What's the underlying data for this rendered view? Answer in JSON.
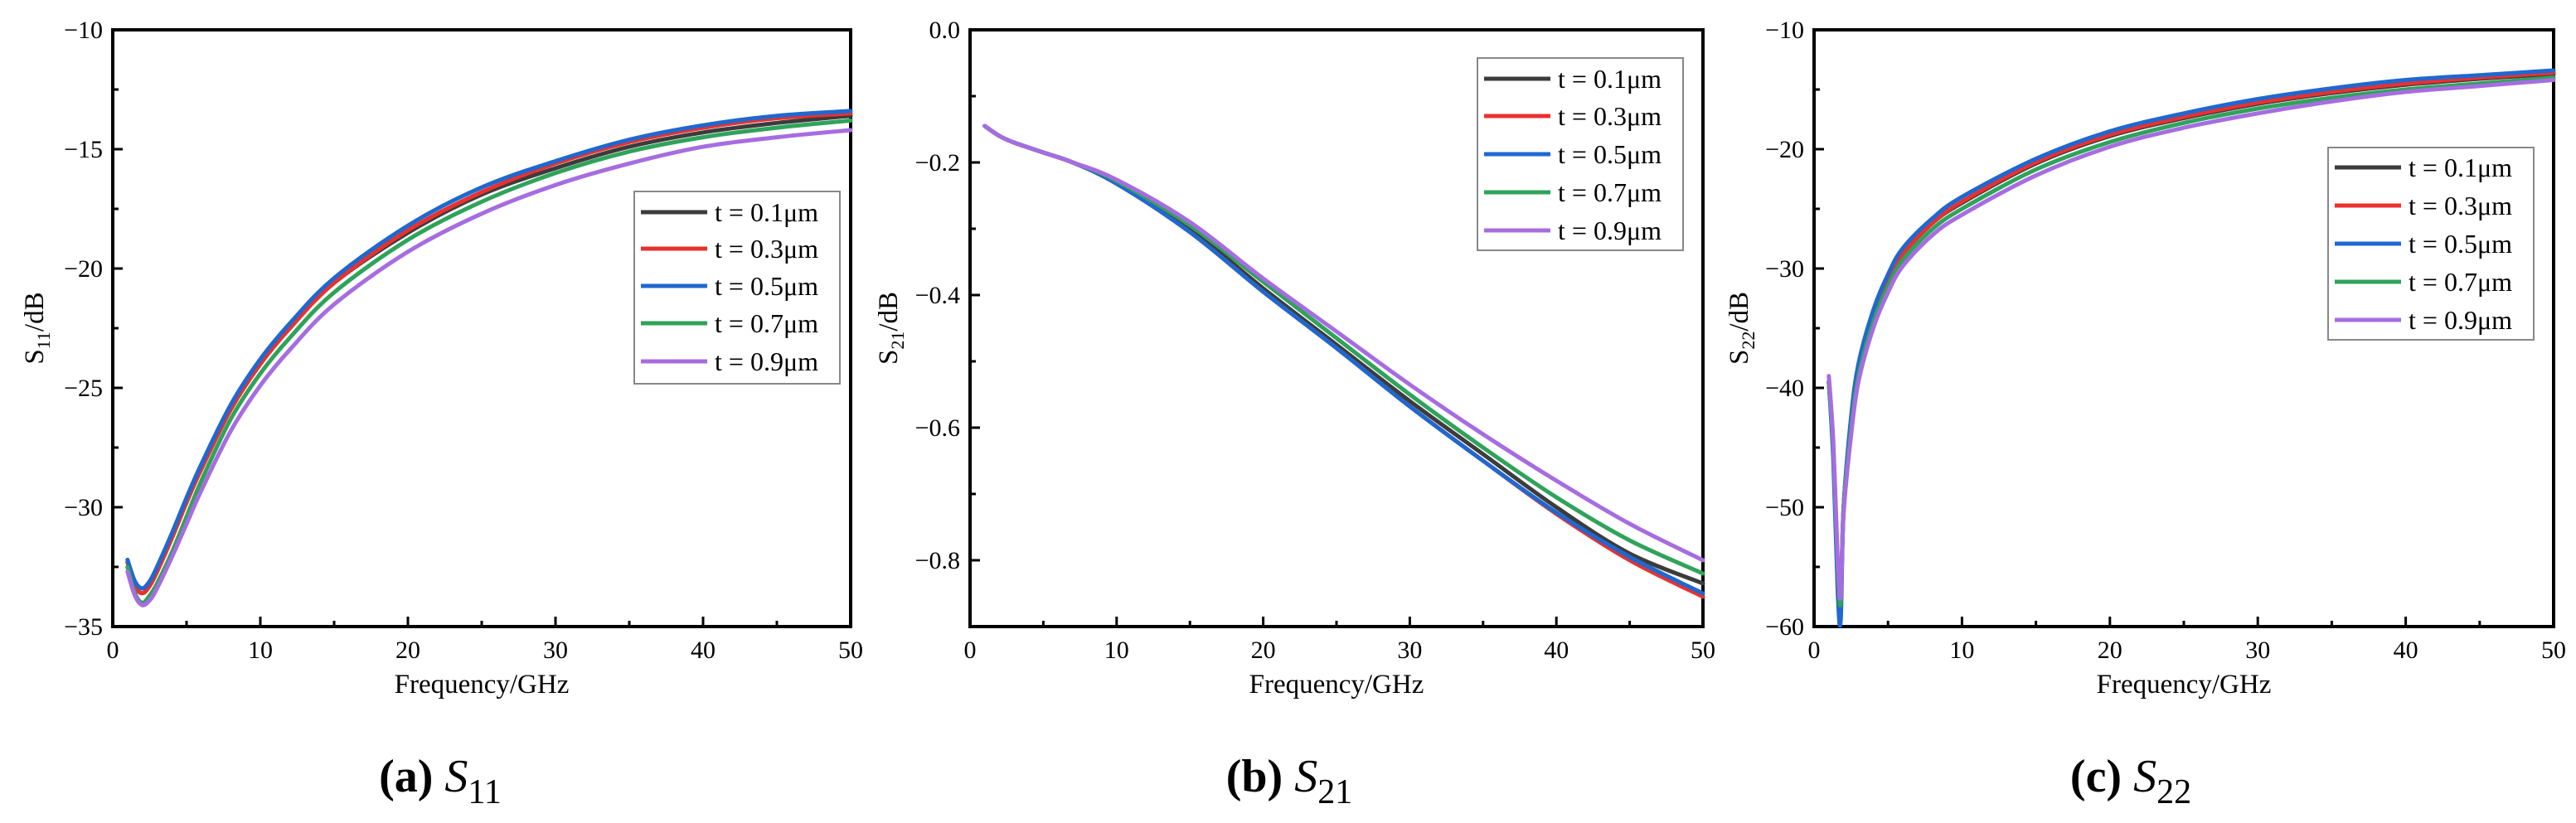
{
  "legend_labels": [
    "t = 0.1μm",
    "t = 0.3μm",
    "t = 0.5μm",
    "t = 0.7μm",
    "t = 0.9μm"
  ],
  "series_colors": [
    "#3c3c3c",
    "#e8312f",
    "#1f68d0",
    "#2fa35a",
    "#a66de0"
  ],
  "chart_data": [
    {
      "type": "line",
      "caption": {
        "letter": "(a)",
        "symbol": "S",
        "sub": "11"
      },
      "xlabel": "Frequency/GHz",
      "ylabel": {
        "main": "S",
        "sub": "11",
        "unit": "/dB"
      },
      "xlim": [
        0,
        50
      ],
      "ylim": [
        -35,
        -10
      ],
      "xticks": [
        0,
        10,
        20,
        30,
        40,
        50
      ],
      "yticks": [
        -35,
        -30,
        -25,
        -20,
        -15,
        -10
      ],
      "tick_labels_x": [
        "0",
        "10",
        "20",
        "30",
        "40",
        "50"
      ],
      "tick_labels_y": [
        "−35",
        "−30",
        "−25",
        "−20",
        "−15",
        "−10"
      ],
      "legend_position": "right-middle",
      "x": [
        1,
        1.5,
        2,
        2.5,
        3,
        4,
        5,
        6,
        8,
        10,
        12,
        15,
        20,
        25,
        30,
        35,
        40,
        45,
        50
      ],
      "series": [
        {
          "name": "t = 0.1μm",
          "values": [
            -32.3,
            -33.3,
            -33.6,
            -33.3,
            -32.7,
            -31.3,
            -29.8,
            -28.4,
            -25.9,
            -24.0,
            -22.5,
            -20.6,
            -18.5,
            -16.9,
            -15.8,
            -14.9,
            -14.3,
            -13.9,
            -13.6
          ]
        },
        {
          "name": "t = 0.3μm",
          "values": [
            -32.3,
            -33.3,
            -33.6,
            -33.3,
            -32.7,
            -31.3,
            -29.8,
            -28.4,
            -25.9,
            -24.0,
            -22.5,
            -20.6,
            -18.4,
            -16.8,
            -15.6,
            -14.7,
            -14.1,
            -13.7,
            -13.5
          ]
        },
        {
          "name": "t = 0.5μm",
          "values": [
            -32.2,
            -33.1,
            -33.4,
            -33.1,
            -32.5,
            -31.1,
            -29.6,
            -28.2,
            -25.7,
            -23.8,
            -22.3,
            -20.4,
            -18.2,
            -16.6,
            -15.5,
            -14.6,
            -14.0,
            -13.6,
            -13.4
          ]
        },
        {
          "name": "t = 0.7μm",
          "values": [
            -32.5,
            -33.6,
            -34.0,
            -33.7,
            -33.2,
            -31.9,
            -30.4,
            -28.9,
            -26.3,
            -24.4,
            -22.9,
            -21.0,
            -18.8,
            -17.2,
            -16.0,
            -15.1,
            -14.5,
            -14.1,
            -13.8
          ]
        },
        {
          "name": "t = 0.9μm",
          "values": [
            -32.7,
            -33.7,
            -34.1,
            -33.9,
            -33.4,
            -32.1,
            -30.7,
            -29.3,
            -26.8,
            -24.9,
            -23.4,
            -21.5,
            -19.3,
            -17.7,
            -16.5,
            -15.6,
            -14.9,
            -14.5,
            -14.2
          ]
        }
      ]
    },
    {
      "type": "line",
      "caption": {
        "letter": "(b)",
        "symbol": "S",
        "sub": "21"
      },
      "xlabel": "Frequency/GHz",
      "ylabel": {
        "main": "S",
        "sub": "21",
        "unit": "/dB"
      },
      "xlim": [
        0,
        50
      ],
      "ylim": [
        -0.9,
        0.0
      ],
      "xticks": [
        0,
        10,
        20,
        30,
        40,
        50
      ],
      "yticks": [
        -0.8,
        -0.6,
        -0.4,
        -0.2,
        0.0
      ],
      "tick_labels_x": [
        "0",
        "10",
        "20",
        "30",
        "40",
        "50"
      ],
      "tick_labels_y": [
        "−0.8",
        "−0.6",
        "−0.4",
        "−0.2",
        "0.0"
      ],
      "legend_position": "top-right",
      "x": [
        1,
        2,
        3,
        5,
        7,
        10,
        15,
        20,
        25,
        30,
        35,
        40,
        45,
        50
      ],
      "series": [
        {
          "name": "t = 0.1μm",
          "values": [
            -0.145,
            -0.16,
            -0.17,
            -0.185,
            -0.2,
            -0.23,
            -0.3,
            -0.39,
            -0.475,
            -0.56,
            -0.64,
            -0.72,
            -0.79,
            -0.835
          ]
        },
        {
          "name": "t = 0.3μm",
          "values": [
            -0.145,
            -0.16,
            -0.17,
            -0.185,
            -0.2,
            -0.232,
            -0.305,
            -0.395,
            -0.48,
            -0.568,
            -0.65,
            -0.73,
            -0.8,
            -0.855
          ]
        },
        {
          "name": "t = 0.5μm",
          "values": [
            -0.145,
            -0.16,
            -0.17,
            -0.185,
            -0.2,
            -0.232,
            -0.305,
            -0.395,
            -0.48,
            -0.568,
            -0.65,
            -0.728,
            -0.795,
            -0.85
          ]
        },
        {
          "name": "t = 0.7μm",
          "values": [
            -0.145,
            -0.16,
            -0.17,
            -0.185,
            -0.2,
            -0.228,
            -0.295,
            -0.38,
            -0.465,
            -0.55,
            -0.63,
            -0.705,
            -0.77,
            -0.82
          ]
        },
        {
          "name": "t = 0.9μm",
          "values": [
            -0.145,
            -0.16,
            -0.17,
            -0.185,
            -0.2,
            -0.226,
            -0.29,
            -0.375,
            -0.455,
            -0.535,
            -0.61,
            -0.68,
            -0.745,
            -0.8
          ]
        }
      ]
    },
    {
      "type": "line",
      "caption": {
        "letter": "(c)",
        "symbol": "S",
        "sub": "22"
      },
      "xlabel": "Frequency/GHz",
      "ylabel": {
        "main": "S",
        "sub": "22",
        "unit": "/dB"
      },
      "xlim": [
        0,
        50
      ],
      "ylim": [
        -60,
        -10
      ],
      "xticks": [
        0,
        10,
        20,
        30,
        40,
        50
      ],
      "yticks": [
        -60,
        -50,
        -40,
        -30,
        -20,
        -10
      ],
      "tick_labels_x": [
        "0",
        "10",
        "20",
        "30",
        "40",
        "50"
      ],
      "tick_labels_y": [
        "−60",
        "−50",
        "−40",
        "−30",
        "−20",
        "−10"
      ],
      "legend_position": "right-upper",
      "x": [
        1,
        1.3,
        1.6,
        1.8,
        2,
        2.5,
        3,
        4,
        5,
        6,
        8,
        10,
        15,
        20,
        25,
        30,
        35,
        40,
        45,
        50
      ],
      "series": [
        {
          "name": "t = 0.1μm",
          "values": [
            -39.5,
            -45,
            -55,
            -58,
            -50,
            -43,
            -38.5,
            -34,
            -31,
            -28.8,
            -26.2,
            -24.5,
            -21.2,
            -18.9,
            -17.4,
            -16.2,
            -15.3,
            -14.6,
            -14.1,
            -13.7
          ]
        },
        {
          "name": "t = 0.3μm",
          "values": [
            -39.5,
            -45,
            -55,
            -58,
            -50,
            -43,
            -38.5,
            -34,
            -31,
            -28.8,
            -26.2,
            -24.4,
            -21.1,
            -18.8,
            -17.3,
            -16.1,
            -15.2,
            -14.5,
            -14.0,
            -13.6
          ]
        },
        {
          "name": "t = 0.5μm",
          "values": [
            -39.5,
            -46,
            -57,
            -59.5,
            -50,
            -42.5,
            -38,
            -33.5,
            -30.5,
            -28.3,
            -25.8,
            -24.0,
            -20.8,
            -18.5,
            -17.0,
            -15.8,
            -14.9,
            -14.2,
            -13.8,
            -13.4
          ]
        },
        {
          "name": "t = 0.7μm",
          "values": [
            -39.5,
            -45,
            -55,
            -58,
            -50,
            -43.5,
            -39,
            -34.5,
            -31.5,
            -29.3,
            -26.7,
            -25.0,
            -21.7,
            -19.4,
            -17.8,
            -16.6,
            -15.7,
            -15.0,
            -14.5,
            -14.0
          ]
        },
        {
          "name": "t = 0.9μm",
          "values": [
            -39.0,
            -44.5,
            -54.5,
            -57.5,
            -50.5,
            -44,
            -39.5,
            -35,
            -32,
            -29.8,
            -27.2,
            -25.5,
            -22.2,
            -19.8,
            -18.2,
            -17.0,
            -16.0,
            -15.2,
            -14.7,
            -14.2
          ]
        }
      ]
    }
  ]
}
